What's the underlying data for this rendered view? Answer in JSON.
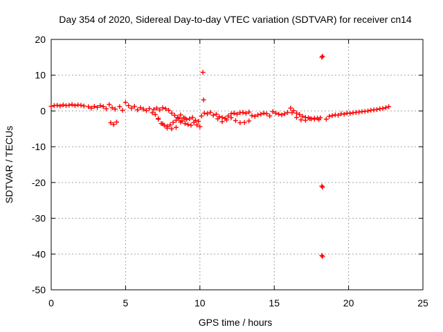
{
  "chart_data": {
    "type": "scatter",
    "title": "Day 354 of 2020, Sidereal Day-to-day VTEC variation (SDTVAR) for receiver cn14",
    "xlabel": "GPS time / hours",
    "ylabel": "SDTVAR / TECUs",
    "xlim": [
      0,
      25
    ],
    "ylim": [
      -50,
      20
    ],
    "xticks": [
      0,
      5,
      10,
      15,
      20,
      25
    ],
    "yticks": [
      -50,
      -40,
      -30,
      -20,
      -10,
      0,
      10,
      20
    ],
    "xtick_labels": [
      "0",
      "5",
      "10",
      "15",
      "20",
      "25"
    ],
    "ytick_labels": [
      "-50",
      "-40",
      "-30",
      "-20",
      "-10",
      "0",
      "10",
      "20"
    ],
    "grid": true,
    "marker": "plus",
    "color": "#ff0000",
    "series": [
      {
        "name": "SDTVAR",
        "x": [
          0.0,
          0.2,
          0.4,
          0.6,
          0.8,
          1.0,
          1.2,
          1.4,
          1.6,
          1.8,
          2.0,
          2.2,
          2.5,
          2.7,
          2.9,
          3.1,
          3.3,
          3.5,
          3.7,
          3.9,
          4.1,
          4.3,
          4.0,
          4.2,
          4.4,
          4.6,
          4.8,
          5.0,
          5.2,
          5.4,
          5.6,
          5.8,
          6.0,
          6.2,
          6.4,
          6.6,
          6.8,
          6.9,
          7.1,
          7.3,
          7.5,
          7.7,
          7.9,
          8.1,
          8.3,
          8.5,
          8.7,
          8.9,
          9.1,
          9.3,
          9.5,
          9.7,
          9.9,
          10.1,
          10.3,
          7.0,
          7.2,
          7.4,
          7.6,
          7.8,
          8.0,
          8.2,
          8.4,
          8.6,
          8.8,
          9.0,
          9.2,
          9.4,
          9.6,
          9.8,
          10.0,
          7.2,
          7.5,
          7.8,
          8.1,
          8.4,
          8.7,
          9.0,
          10.5,
          10.7,
          10.9,
          11.1,
          11.3,
          11.5,
          11.7,
          11.9,
          12.1,
          12.3,
          12.5,
          12.7,
          12.9,
          13.1,
          13.3,
          11.2,
          11.5,
          11.8,
          12.1,
          12.4,
          12.7,
          13.0,
          13.3,
          13.5,
          13.7,
          13.9,
          14.1,
          14.3,
          14.5,
          14.7,
          14.9,
          15.1,
          15.3,
          15.5,
          15.7,
          15.9,
          16.1,
          16.3,
          16.5,
          16.7,
          16.9,
          17.1,
          17.3,
          17.5,
          17.7,
          17.9,
          18.1,
          16.2,
          16.5,
          16.8,
          17.1,
          17.4,
          17.7,
          18.0,
          18.5,
          18.7,
          18.9,
          19.1,
          19.3,
          19.5,
          19.7,
          19.9,
          20.1,
          20.3,
          20.5,
          20.7,
          20.9,
          21.1,
          21.3,
          21.5,
          21.7,
          21.9,
          22.1,
          22.3,
          22.5,
          22.7,
          10.2,
          10.25,
          18.2,
          18.25,
          18.2,
          18.25,
          18.2,
          18.25
        ],
        "y": [
          1.3,
          1.5,
          1.6,
          1.4,
          1.7,
          1.5,
          1.6,
          1.8,
          1.5,
          1.7,
          1.6,
          1.4,
          1.2,
          0.8,
          1.3,
          1.0,
          1.5,
          1.2,
          0.6,
          1.8,
          0.9,
          0.5,
          -3.3,
          -3.8,
          -3.1,
          1.2,
          0.2,
          2.4,
          1.5,
          0.8,
          1.3,
          0.3,
          0.9,
          0.5,
          0.1,
          0.7,
          -0.5,
          0.4,
          0.8,
          0.3,
          0.9,
          0.6,
          0.2,
          -0.6,
          -1.2,
          -1.8,
          -1.1,
          -1.9,
          -2.4,
          -2.2,
          -1.8,
          -2.6,
          -2.9,
          -1.4,
          -0.6,
          -1.0,
          -2.3,
          -3.5,
          -4.0,
          -4.3,
          -3.9,
          -3.2,
          -2.6,
          -2.1,
          -2.8,
          -3.5,
          -3.8,
          -4.0,
          -3.2,
          -3.9,
          -4.4,
          -2.1,
          -3.6,
          -4.8,
          -5.0,
          -4.6,
          -3.1,
          -2.0,
          -0.8,
          -0.4,
          -1.2,
          -0.9,
          -1.6,
          -1.8,
          -2.1,
          -1.4,
          -0.8,
          -0.6,
          -0.9,
          -0.5,
          -0.4,
          -0.7,
          -0.3,
          -2.2,
          -3.0,
          -2.5,
          -1.9,
          -2.7,
          -3.3,
          -3.2,
          -2.8,
          -1.3,
          -1.5,
          -1.1,
          -0.9,
          -0.6,
          -0.8,
          -1.4,
          -0.2,
          -0.6,
          -0.9,
          -1.1,
          -0.8,
          -0.4,
          0.8,
          0.1,
          -0.6,
          -1.0,
          -1.5,
          -1.8,
          -1.9,
          -2.2,
          -2.3,
          -2.0,
          -1.9,
          -0.5,
          -1.8,
          -2.5,
          -2.6,
          -2.2,
          -2.0,
          -2.4,
          -2.3,
          -1.5,
          -1.3,
          -1.1,
          -1.2,
          -0.8,
          -0.9,
          -0.6,
          -0.7,
          -0.5,
          -0.4,
          -0.3,
          -0.2,
          -0.1,
          0.0,
          0.2,
          0.3,
          0.4,
          0.6,
          0.7,
          0.9,
          1.2,
          10.8,
          3.1,
          15.0,
          15.3,
          -21.0,
          -21.3,
          -40.4,
          -40.7
        ]
      }
    ]
  }
}
